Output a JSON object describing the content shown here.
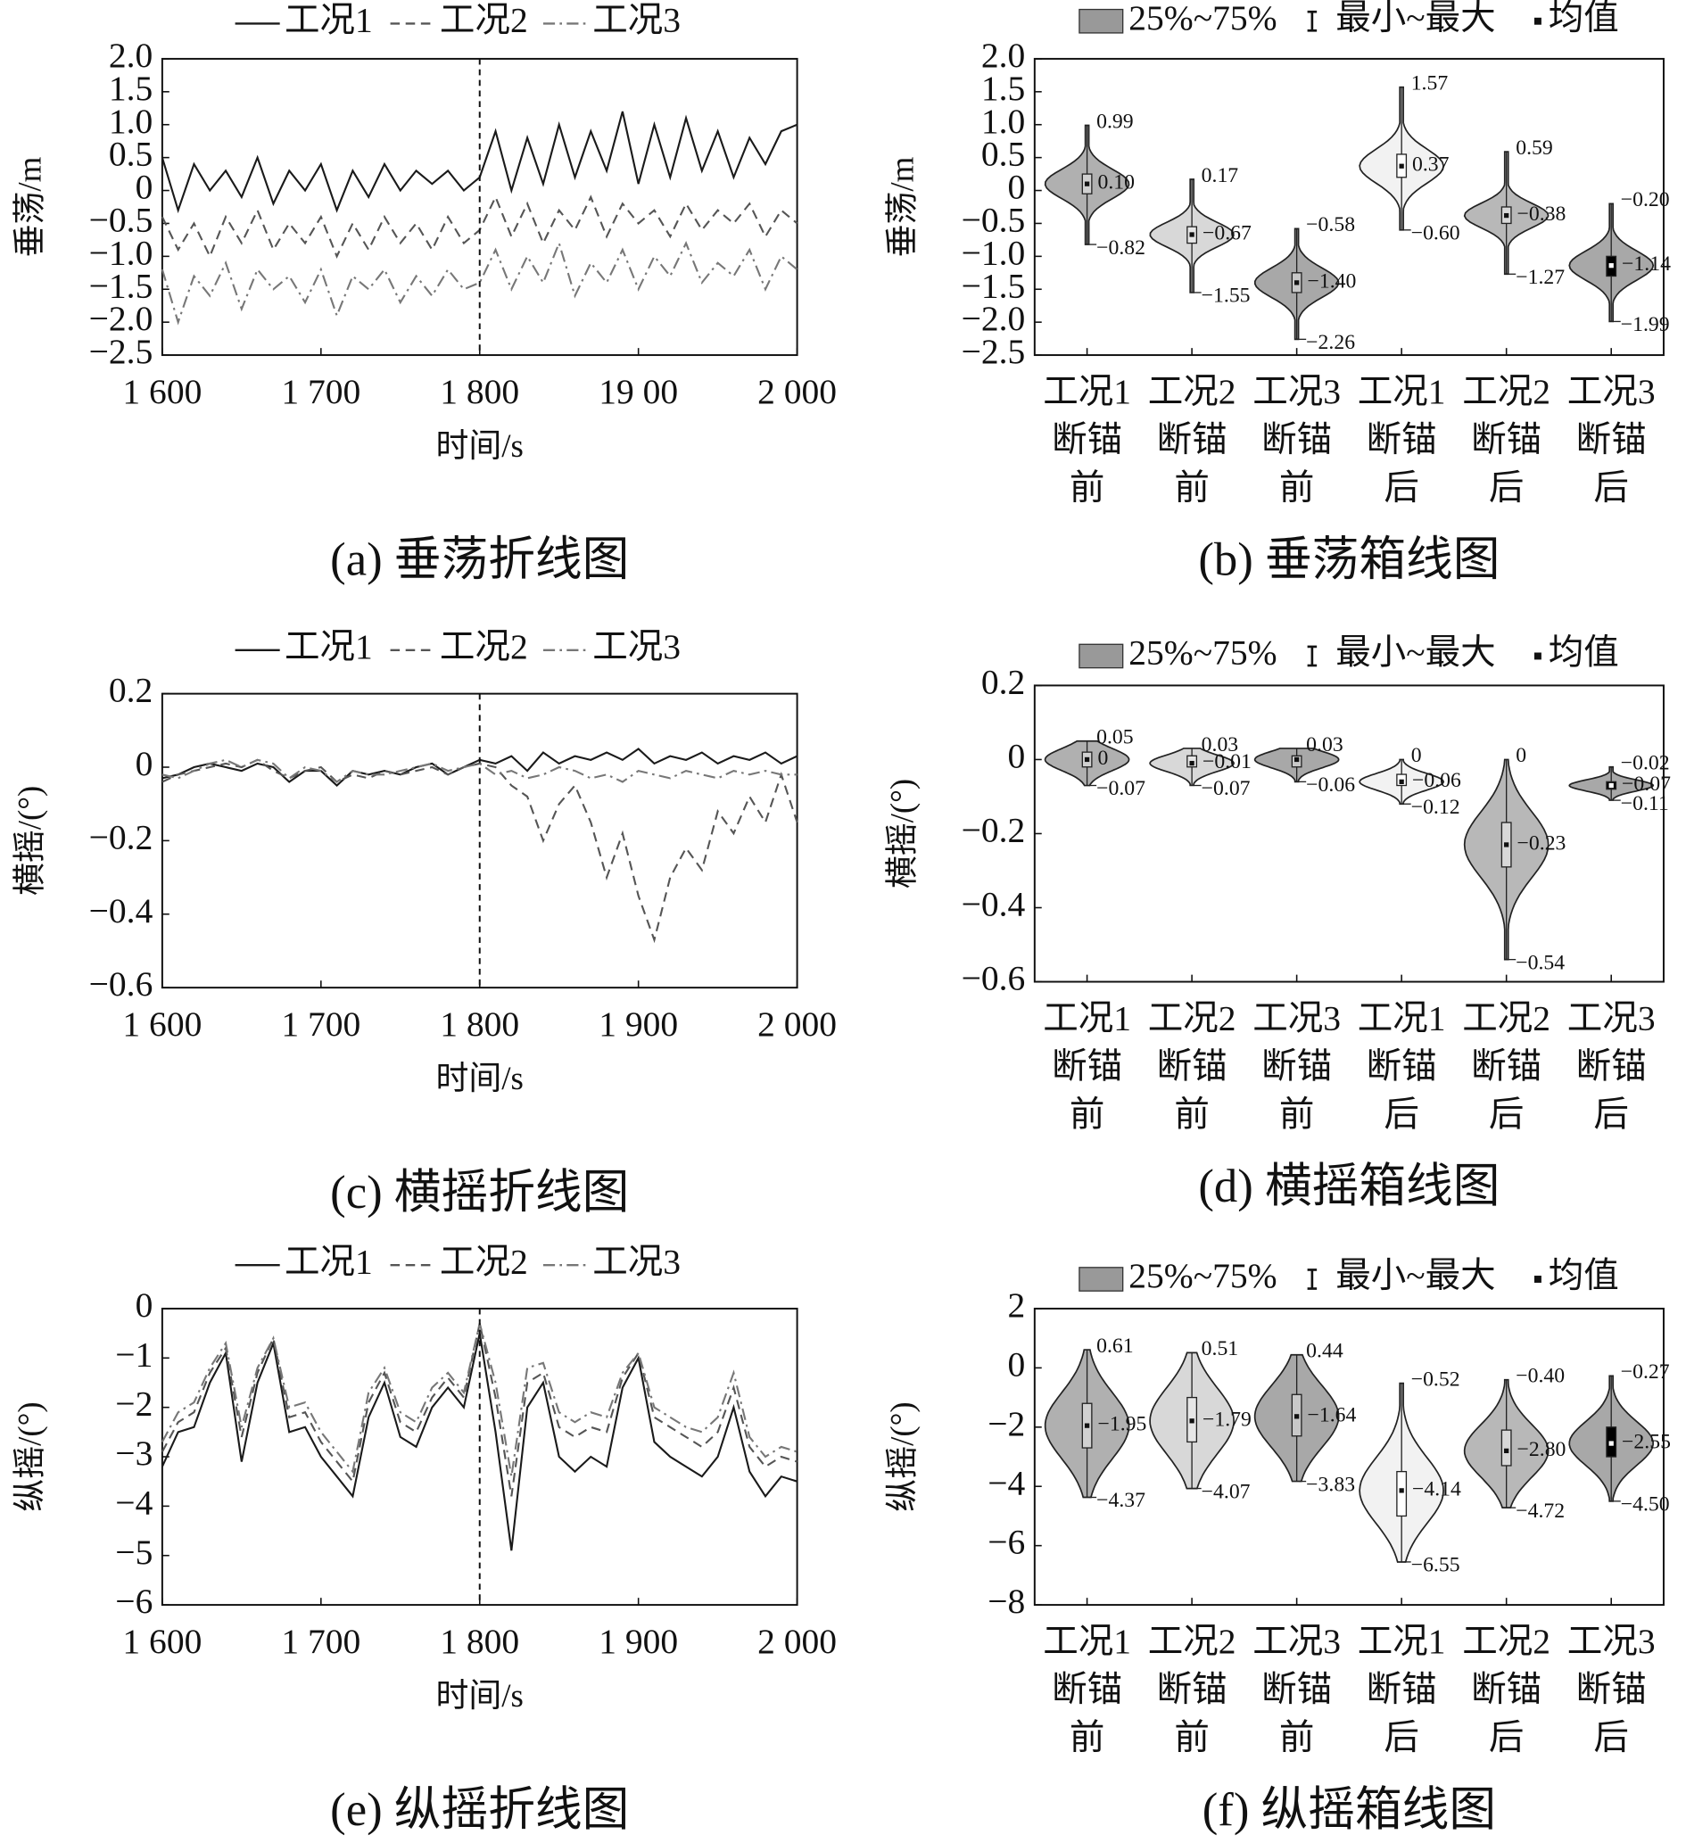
{
  "chart_data": [
    {
      "type": "line",
      "title": "(a) 垂荡折线图",
      "xlabel": "时间/s",
      "ylabel": "垂荡/m",
      "xlim": [
        1600,
        2000
      ],
      "xticks": [
        {
          "value": 1600,
          "label": "1 600"
        },
        {
          "value": 1700,
          "label": "1 700"
        },
        {
          "value": 1800,
          "label": "1 800"
        },
        {
          "value": 1900,
          "label": "19 00"
        },
        {
          "value": 2000,
          "label": "2 000"
        }
      ],
      "ylim": [
        -2.5,
        2.0
      ],
      "yticks": [
        {
          "value": 2.0,
          "label": "2.0"
        },
        1.5,
        {
          "value": 1.0,
          "label": "1.0"
        },
        0.5,
        0,
        {
          "value": -0.5,
          "label": "−0.5"
        },
        {
          "value": -1.0,
          "label": "−1.0"
        },
        {
          "value": -1.5,
          "label": "−1.5"
        },
        {
          "value": -2.0,
          "label": "−2.0"
        },
        {
          "value": -2.5,
          "label": "−2.5"
        }
      ],
      "vline": 1800,
      "x": [
        1600,
        1610,
        1620,
        1630,
        1640,
        1650,
        1660,
        1670,
        1680,
        1690,
        1700,
        1710,
        1720,
        1730,
        1740,
        1750,
        1760,
        1770,
        1780,
        1790,
        1800,
        1810,
        1820,
        1830,
        1840,
        1850,
        1860,
        1870,
        1880,
        1890,
        1900,
        1910,
        1920,
        1930,
        1940,
        1950,
        1960,
        1970,
        1980,
        1990,
        2000
      ],
      "series": [
        {
          "name": "工况1",
          "color": "#1a1a1a",
          "dash": "solid",
          "values": [
            0.5,
            -0.3,
            0.4,
            0.0,
            0.3,
            -0.1,
            0.5,
            -0.2,
            0.3,
            0.0,
            0.4,
            -0.3,
            0.3,
            -0.1,
            0.4,
            0.0,
            0.3,
            0.1,
            0.3,
            0.0,
            0.2,
            0.9,
            0.0,
            0.8,
            0.1,
            1.0,
            0.2,
            0.9,
            0.3,
            1.2,
            0.1,
            1.0,
            0.2,
            1.1,
            0.3,
            0.9,
            0.2,
            0.8,
            0.4,
            0.9,
            1.0
          ]
        },
        {
          "name": "工况2",
          "color": "#555555",
          "dash": "dashed",
          "values": [
            -0.4,
            -0.9,
            -0.5,
            -1.0,
            -0.4,
            -0.8,
            -0.3,
            -0.9,
            -0.5,
            -0.8,
            -0.4,
            -1.0,
            -0.5,
            -0.9,
            -0.4,
            -0.8,
            -0.5,
            -0.9,
            -0.4,
            -0.8,
            -0.6,
            -0.1,
            -0.7,
            -0.2,
            -0.8,
            -0.3,
            -0.6,
            -0.1,
            -0.7,
            -0.2,
            -0.5,
            -0.3,
            -0.7,
            -0.2,
            -0.6,
            -0.3,
            -0.5,
            -0.2,
            -0.7,
            -0.3,
            -0.5
          ]
        },
        {
          "name": "工况3",
          "color": "#777777",
          "dash": "dashdot",
          "values": [
            -1.2,
            -2.0,
            -1.3,
            -1.6,
            -1.1,
            -1.8,
            -1.2,
            -1.5,
            -1.3,
            -1.7,
            -1.2,
            -1.9,
            -1.3,
            -1.5,
            -1.2,
            -1.7,
            -1.3,
            -1.6,
            -1.2,
            -1.5,
            -1.4,
            -0.9,
            -1.5,
            -1.0,
            -1.4,
            -0.8,
            -1.6,
            -1.1,
            -1.4,
            -0.9,
            -1.5,
            -1.0,
            -1.3,
            -0.8,
            -1.4,
            -1.1,
            -1.3,
            -0.9,
            -1.5,
            -1.0,
            -1.2
          ]
        }
      ]
    },
    {
      "type": "violin",
      "title": "(b) 垂荡箱线图",
      "ylabel": "垂荡/m",
      "legend_labels": [
        "25%~75%",
        "最小~最大",
        "均值"
      ],
      "ylim": [
        -2.5,
        2.0
      ],
      "yticks": [
        {
          "value": 2.0,
          "label": "2.0"
        },
        1.5,
        {
          "value": 1.0,
          "label": "1.0"
        },
        0.5,
        0,
        {
          "value": -0.5,
          "label": "−0.5"
        },
        {
          "value": -1.0,
          "label": "−1.0"
        },
        {
          "value": -1.5,
          "label": "−1.5"
        },
        {
          "value": -2.0,
          "label": "−2.0"
        },
        {
          "value": -2.5,
          "label": "−2.5"
        }
      ],
      "categories": [
        [
          "工况1",
          "断锚",
          "前"
        ],
        [
          "工况2",
          "断锚",
          "前"
        ],
        [
          "工况3",
          "断锚",
          "前"
        ],
        [
          "工况1",
          "断锚",
          "后"
        ],
        [
          "工况2",
          "断锚",
          "后"
        ],
        [
          "工况3",
          "断锚",
          "后"
        ]
      ],
      "max": [
        0.99,
        0.17,
        -0.58,
        1.57,
        0.59,
        -0.2
      ],
      "max_labels": [
        "0.99",
        "0.17",
        "−0.58",
        "1.57",
        "0.59",
        "−0.20"
      ],
      "mean": [
        0.1,
        -0.67,
        -1.4,
        0.37,
        -0.38,
        -1.14
      ],
      "mean_labels": [
        "0.10",
        "−0.67",
        "−1.40",
        "0.37",
        "−0.38",
        "−1.14"
      ],
      "min": [
        -0.82,
        -1.55,
        -2.26,
        -0.6,
        -1.27,
        -1.99
      ],
      "min_labels": [
        "−0.82",
        "−1.55",
        "−2.26",
        "−0.60",
        "−1.27",
        "−1.99"
      ],
      "q1": [
        -0.05,
        -0.8,
        -1.55,
        0.2,
        -0.5,
        -1.3
      ],
      "q3": [
        0.25,
        -0.55,
        -1.25,
        0.55,
        -0.25,
        -1.0
      ],
      "violin_colors": [
        "#b0b0b0",
        "#d8d8d8",
        "#a8a8a8",
        "#f2f2f2",
        "#b8b8b8",
        "#a8a8a8"
      ],
      "box_colors": [
        "#d0d0d0",
        "#e6e6e6",
        "#c8c8c8",
        "#ffffff",
        "#d8d8d8",
        "#000000"
      ]
    },
    {
      "type": "line",
      "title": "(c) 横摇折线图",
      "xlabel": "时间/s",
      "ylabel": "横摇/(°)",
      "xlim": [
        1600,
        2000
      ],
      "xticks": [
        {
          "value": 1600,
          "label": "1 600"
        },
        {
          "value": 1700,
          "label": "1 700"
        },
        {
          "value": 1800,
          "label": "1 800"
        },
        {
          "value": 1900,
          "label": "1 900"
        },
        {
          "value": 2000,
          "label": "2 000"
        }
      ],
      "ylim": [
        -0.6,
        0.2
      ],
      "yticks": [
        0.2,
        0,
        {
          "value": -0.2,
          "label": "−0.2"
        },
        {
          "value": -0.4,
          "label": "−0.4"
        },
        {
          "value": -0.6,
          "label": "−0.6"
        }
      ],
      "vline": 1800,
      "x": [
        1600,
        1610,
        1620,
        1630,
        1640,
        1650,
        1660,
        1670,
        1680,
        1690,
        1700,
        1710,
        1720,
        1730,
        1740,
        1750,
        1760,
        1770,
        1780,
        1790,
        1800,
        1810,
        1820,
        1830,
        1840,
        1850,
        1860,
        1870,
        1880,
        1890,
        1900,
        1910,
        1920,
        1930,
        1940,
        1950,
        1960,
        1970,
        1980,
        1990,
        2000
      ],
      "series": [
        {
          "name": "工况1",
          "color": "#1a1a1a",
          "dash": "solid",
          "values": [
            -0.03,
            -0.02,
            0,
            0.01,
            0,
            -0.01,
            0.01,
            0,
            -0.04,
            -0.01,
            -0.01,
            -0.05,
            -0.01,
            -0.02,
            -0.01,
            -0.02,
            0,
            0.01,
            -0.02,
            0,
            0.02,
            0.01,
            0.03,
            -0.01,
            0.04,
            0.01,
            0.03,
            0.02,
            0.04,
            0.02,
            0.05,
            0.01,
            0.03,
            0.02,
            0.04,
            0.01,
            0.03,
            0.02,
            0.04,
            0.01,
            0.03
          ]
        },
        {
          "name": "工况2",
          "color": "#555555",
          "dash": "dashed",
          "values": [
            -0.04,
            -0.02,
            -0.01,
            0,
            0.01,
            0,
            0.02,
            -0.01,
            -0.03,
            -0.01,
            0,
            -0.04,
            -0.02,
            -0.03,
            -0.01,
            -0.02,
            -0.01,
            0,
            -0.02,
            0,
            0.01,
            0.0,
            -0.05,
            -0.08,
            -0.2,
            -0.1,
            -0.05,
            -0.15,
            -0.3,
            -0.18,
            -0.35,
            -0.47,
            -0.3,
            -0.22,
            -0.28,
            -0.12,
            -0.18,
            -0.08,
            -0.15,
            -0.02,
            -0.15
          ]
        },
        {
          "name": "工况3",
          "color": "#777777",
          "dash": "dashdot",
          "values": [
            -0.02,
            -0.03,
            -0.01,
            0.01,
            0.02,
            0,
            0.02,
            0.01,
            -0.03,
            0,
            -0.01,
            -0.04,
            -0.01,
            -0.02,
            -0.02,
            -0.01,
            0,
            0.01,
            -0.01,
            0,
            0.01,
            -0.02,
            -0.01,
            -0.03,
            -0.02,
            0,
            -0.01,
            -0.03,
            -0.02,
            -0.04,
            -0.01,
            -0.02,
            -0.03,
            -0.01,
            -0.02,
            -0.03,
            -0.01,
            -0.02,
            -0.01,
            -0.02,
            -0.02
          ]
        }
      ]
    },
    {
      "type": "violin",
      "title": "(d) 横摇箱线图",
      "ylabel": "横摇/(°)",
      "legend_labels": [
        "25%~75%",
        "最小~最大",
        "均值"
      ],
      "ylim": [
        -0.6,
        0.2
      ],
      "yticks": [
        0.2,
        0,
        {
          "value": -0.2,
          "label": "−0.2"
        },
        {
          "value": -0.4,
          "label": "−0.4"
        },
        {
          "value": -0.6,
          "label": "−0.6"
        }
      ],
      "categories": [
        [
          "工况1",
          "断锚",
          "前"
        ],
        [
          "工况2",
          "断锚",
          "前"
        ],
        [
          "工况3",
          "断锚",
          "前"
        ],
        [
          "工况1",
          "断锚",
          "后"
        ],
        [
          "工况2",
          "断锚",
          "后"
        ],
        [
          "工况3",
          "断锚",
          "后"
        ]
      ],
      "max": [
        0.05,
        0.03,
        0.03,
        0,
        0,
        -0.02
      ],
      "max_labels": [
        "0.05",
        "0.03",
        "0.03",
        "0",
        "0",
        "−0.02"
      ],
      "mean": [
        0,
        -0.01,
        0,
        -0.06,
        -0.23,
        -0.07
      ],
      "mean_labels": [
        "0",
        "−0.01",
        null,
        "−0.06",
        "−0.23",
        "−0.07"
      ],
      "min": [
        -0.07,
        -0.07,
        -0.06,
        -0.12,
        -0.54,
        -0.11
      ],
      "min_labels": [
        "−0.07",
        "−0.07",
        "−0.06",
        "−0.12",
        "−0.54",
        "−0.11"
      ],
      "q1": [
        -0.02,
        -0.02,
        -0.02,
        -0.07,
        -0.29,
        -0.08
      ],
      "q3": [
        0.02,
        0.01,
        0.01,
        -0.04,
        -0.17,
        -0.06
      ],
      "violin_colors": [
        "#b0b0b0",
        "#d8d8d8",
        "#a8a8a8",
        "#f2f2f2",
        "#b8b8b8",
        "#a8a8a8"
      ],
      "box_colors": [
        "#d0d0d0",
        "#e6e6e6",
        "#c8c8c8",
        "#ffffff",
        "#d8d8d8",
        "#000000"
      ]
    },
    {
      "type": "line",
      "title": "(e) 纵摇折线图",
      "xlabel": "时间/s",
      "ylabel": "纵摇/(°)",
      "xlim": [
        1600,
        2000
      ],
      "xticks": [
        {
          "value": 1600,
          "label": "1 600"
        },
        {
          "value": 1700,
          "label": "1 700"
        },
        {
          "value": 1800,
          "label": "1 800"
        },
        {
          "value": 1900,
          "label": "1 900"
        },
        {
          "value": 2000,
          "label": "2 000"
        }
      ],
      "ylim": [
        -6,
        0
      ],
      "yticks": [
        0,
        {
          "value": -1,
          "label": "−1"
        },
        {
          "value": -2,
          "label": "−2"
        },
        {
          "value": -3,
          "label": "−3"
        },
        {
          "value": -4,
          "label": "−4"
        },
        {
          "value": -5,
          "label": "−5"
        },
        {
          "value": -6,
          "label": "−6"
        }
      ],
      "vline": 1800,
      "x": [
        1600,
        1610,
        1620,
        1630,
        1640,
        1650,
        1660,
        1670,
        1680,
        1690,
        1700,
        1710,
        1720,
        1730,
        1740,
        1750,
        1760,
        1770,
        1780,
        1790,
        1800,
        1810,
        1820,
        1830,
        1840,
        1850,
        1860,
        1870,
        1880,
        1890,
        1900,
        1910,
        1920,
        1930,
        1940,
        1950,
        1960,
        1970,
        1980,
        1990,
        2000
      ],
      "series": [
        {
          "name": "工况1",
          "color": "#1a1a1a",
          "dash": "solid",
          "values": [
            -3.2,
            -2.5,
            -2.4,
            -1.5,
            -0.9,
            -3.1,
            -1.5,
            -0.7,
            -2.5,
            -2.4,
            -3.0,
            -3.4,
            -3.8,
            -2.2,
            -1.5,
            -2.6,
            -2.8,
            -2.0,
            -1.6,
            -2.0,
            -0.5,
            -2.5,
            -4.9,
            -2.0,
            -1.5,
            -3.0,
            -3.3,
            -3.0,
            -3.2,
            -1.6,
            -1.0,
            -2.7,
            -3.0,
            -3.2,
            -3.4,
            -3.0,
            -2.0,
            -3.3,
            -3.8,
            -3.4,
            -3.5
          ]
        },
        {
          "name": "工况2",
          "color": "#555555",
          "dash": "dashed",
          "values": [
            -2.9,
            -2.3,
            -2.1,
            -1.3,
            -0.8,
            -2.6,
            -1.3,
            -0.6,
            -2.2,
            -2.1,
            -2.7,
            -3.1,
            -3.5,
            -1.9,
            -1.3,
            -2.3,
            -2.5,
            -1.8,
            -1.4,
            -1.8,
            -0.3,
            -1.8,
            -3.8,
            -1.5,
            -1.3,
            -2.4,
            -2.6,
            -2.4,
            -2.5,
            -1.4,
            -0.9,
            -2.2,
            -2.4,
            -2.6,
            -2.8,
            -2.5,
            -1.6,
            -2.8,
            -3.2,
            -3.0,
            -3.1
          ]
        },
        {
          "name": "工况3",
          "color": "#777777",
          "dash": "dashdot",
          "values": [
            -2.7,
            -2.1,
            -1.9,
            -1.2,
            -0.7,
            -2.4,
            -1.2,
            -0.6,
            -2.0,
            -1.9,
            -2.5,
            -2.9,
            -3.3,
            -1.7,
            -1.2,
            -2.1,
            -2.3,
            -1.6,
            -1.3,
            -1.7,
            -0.3,
            -1.5,
            -3.4,
            -1.2,
            -1.1,
            -2.1,
            -2.3,
            -2.1,
            -2.2,
            -1.3,
            -0.9,
            -2.0,
            -2.2,
            -2.4,
            -2.5,
            -2.2,
            -1.3,
            -2.6,
            -3.0,
            -2.8,
            -2.9
          ]
        }
      ]
    },
    {
      "type": "violin",
      "title": "(f) 纵摇箱线图",
      "ylabel": "纵摇/(°)",
      "legend_labels": [
        "25%~75%",
        "最小~最大",
        "均值"
      ],
      "ylim": [
        -8,
        2
      ],
      "yticks": [
        2,
        0,
        {
          "value": -2,
          "label": "−2"
        },
        {
          "value": -4,
          "label": "−4"
        },
        {
          "value": -6,
          "label": "−6"
        },
        {
          "value": -8,
          "label": "−8"
        }
      ],
      "categories": [
        [
          "工况1",
          "断锚",
          "前"
        ],
        [
          "工况2",
          "断锚",
          "前"
        ],
        [
          "工况3",
          "断锚",
          "前"
        ],
        [
          "工况1",
          "断锚",
          "后"
        ],
        [
          "工况2",
          "断锚",
          "后"
        ],
        [
          "工况3",
          "断锚",
          "后"
        ]
      ],
      "max": [
        0.61,
        0.51,
        0.44,
        -0.52,
        -0.4,
        -0.27
      ],
      "max_labels": [
        "0.61",
        "0.51",
        "0.44",
        "−0.52",
        "−0.40",
        "−0.27"
      ],
      "mean": [
        -1.95,
        -1.79,
        -1.64,
        -4.14,
        -2.8,
        -2.55
      ],
      "mean_labels": [
        "−1.95",
        "−1.79",
        "−1.64",
        "−4.14",
        "−2.80",
        "−2.55"
      ],
      "min": [
        -4.37,
        -4.07,
        -3.83,
        -6.55,
        -4.72,
        -4.5
      ],
      "min_labels": [
        "−4.37",
        "−4.07",
        "−3.83",
        "−6.55",
        "−4.72",
        "−4.50"
      ],
      "q1": [
        -2.7,
        -2.5,
        -2.3,
        -5.0,
        -3.3,
        -3.0
      ],
      "q3": [
        -1.2,
        -1.0,
        -0.9,
        -3.5,
        -2.1,
        -2.0
      ],
      "violin_colors": [
        "#b0b0b0",
        "#d8d8d8",
        "#a8a8a8",
        "#f2f2f2",
        "#b8b8b8",
        "#a8a8a8"
      ],
      "box_colors": [
        "#d0d0d0",
        "#e6e6e6",
        "#c8c8c8",
        "#ffffff",
        "#d8d8d8",
        "#000000"
      ]
    }
  ]
}
